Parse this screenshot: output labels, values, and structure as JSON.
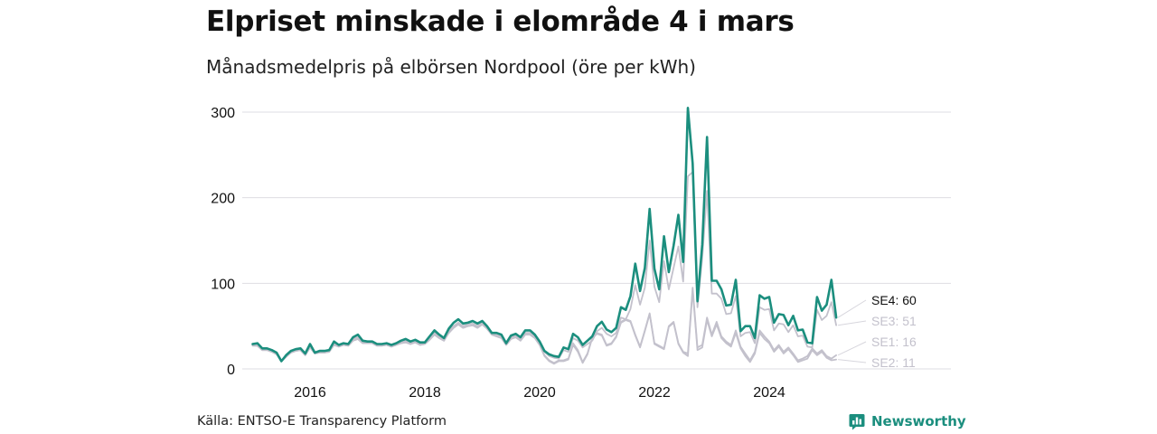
{
  "title": "Elpriset minskade i elområde 4 i mars",
  "subtitle": "Månadsmedelpris på elbörsen Nordpool (öre per kWh)",
  "source": "Källa: ENTSO-E Transparency Platform",
  "brand": {
    "name": "Newsworthy",
    "icon": "bar-chart-speech-bubble-icon",
    "color": "#1b8e7e"
  },
  "chart_data": {
    "type": "line",
    "x_start": "2015-01",
    "x_end": "2025-03",
    "ylim": [
      0,
      310
    ],
    "y_ticks": [
      0,
      100,
      200,
      300
    ],
    "x_ticks": [
      2016,
      2018,
      2020,
      2022,
      2024
    ],
    "grid": true,
    "series": [
      {
        "name": "SE4",
        "end_label": "SE4: 60",
        "color": "#1b8e7e",
        "label_color": "#111111",
        "emphasis": true,
        "values": [
          29,
          30,
          24,
          24,
          22,
          19,
          9,
          16,
          21,
          23,
          24,
          18,
          29,
          19,
          21,
          21,
          22,
          32,
          28,
          30,
          29,
          37,
          40,
          33,
          32,
          32,
          29,
          29,
          30,
          28,
          30,
          33,
          35,
          32,
          34,
          31,
          31,
          38,
          45,
          40,
          36,
          47,
          54,
          58,
          53,
          54,
          56,
          53,
          56,
          50,
          42,
          42,
          40,
          30,
          39,
          41,
          37,
          45,
          45,
          40,
          32,
          21,
          17,
          15,
          14,
          25,
          23,
          41,
          37,
          28,
          33,
          38,
          50,
          55,
          46,
          43,
          48,
          72,
          69,
          85,
          123,
          91,
          118,
          187,
          117,
          93,
          155,
          113,
          144,
          180,
          125,
          305,
          240,
          79,
          145,
          271,
          103,
          103,
          93,
          74,
          75,
          104,
          44,
          50,
          50,
          36,
          86,
          82,
          84,
          54,
          64,
          63,
          51,
          62,
          45,
          46,
          31,
          30,
          84,
          68,
          75,
          104,
          60
        ]
      },
      {
        "name": "SE3",
        "end_label": "SE3: 51",
        "color": "#c3c1cc",
        "label_color": "#c3c1cc",
        "emphasis": false,
        "values": [
          28,
          29,
          23,
          23,
          21,
          18,
          9,
          15,
          20,
          22,
          23,
          17,
          27,
          19,
          20,
          20,
          21,
          30,
          27,
          29,
          28,
          35,
          37,
          31,
          31,
          31,
          28,
          28,
          29,
          27,
          29,
          31,
          33,
          30,
          32,
          29,
          30,
          36,
          42,
          38,
          34,
          44,
          50,
          54,
          50,
          52,
          53,
          50,
          54,
          48,
          41,
          40,
          38,
          29,
          37,
          39,
          35,
          42,
          42,
          38,
          30,
          20,
          15,
          13,
          12,
          22,
          20,
          36,
          33,
          25,
          29,
          33,
          44,
          48,
          41,
          38,
          42,
          60,
          58,
          70,
          98,
          75,
          95,
          150,
          96,
          78,
          126,
          93,
          118,
          143,
          102,
          225,
          230,
          72,
          130,
          208,
          88,
          88,
          82,
          64,
          65,
          85,
          38,
          42,
          43,
          30,
          72,
          69,
          70,
          45,
          53,
          52,
          43,
          51,
          38,
          39,
          26,
          25,
          69,
          57,
          62,
          78,
          51
        ]
      },
      {
        "name": "SE1",
        "end_label": "SE1: 16",
        "color": "#c3c1cc",
        "label_color": "#c3c1cc",
        "emphasis": false,
        "values": [
          27,
          27,
          22,
          22,
          20,
          17,
          9,
          14,
          19,
          21,
          22,
          16,
          25,
          18,
          19,
          19,
          20,
          28,
          26,
          28,
          27,
          33,
          35,
          30,
          30,
          30,
          27,
          27,
          28,
          26,
          28,
          30,
          31,
          29,
          31,
          28,
          29,
          34,
          40,
          36,
          33,
          42,
          48,
          52,
          48,
          50,
          51,
          48,
          52,
          47,
          40,
          38,
          36,
          28,
          35,
          37,
          33,
          40,
          40,
          36,
          28,
          16,
          10,
          7,
          10,
          10,
          12,
          30,
          22,
          8,
          18,
          37,
          42,
          40,
          28,
          30,
          38,
          55,
          58,
          56,
          40,
          26,
          45,
          65,
          30,
          27,
          24,
          50,
          55,
          30,
          20,
          18,
          95,
          25,
          28,
          60,
          40,
          55,
          38,
          32,
          28,
          45,
          26,
          18,
          10,
          20,
          45,
          38,
          32,
          22,
          28,
          20,
          25,
          18,
          10,
          12,
          15,
          24,
          18,
          22,
          15,
          12,
          16
        ]
      },
      {
        "name": "SE2",
        "end_label": "SE2: 11",
        "color": "#c3c1cc",
        "label_color": "#c3c1cc",
        "emphasis": false,
        "values": [
          27,
          27,
          22,
          22,
          20,
          17,
          9,
          14,
          19,
          21,
          22,
          16,
          25,
          18,
          19,
          19,
          20,
          28,
          26,
          28,
          27,
          33,
          35,
          30,
          30,
          30,
          27,
          27,
          28,
          26,
          28,
          30,
          31,
          29,
          31,
          28,
          29,
          34,
          40,
          36,
          33,
          42,
          48,
          52,
          48,
          50,
          51,
          48,
          52,
          47,
          40,
          38,
          36,
          28,
          35,
          37,
          33,
          40,
          40,
          36,
          28,
          15,
          9,
          6,
          9,
          9,
          11,
          28,
          20,
          7,
          17,
          36,
          41,
          39,
          27,
          29,
          37,
          54,
          57,
          55,
          39,
          25,
          44,
          64,
          29,
          26,
          23,
          49,
          54,
          29,
          19,
          15,
          92,
          22,
          25,
          57,
          38,
          52,
          36,
          30,
          26,
          42,
          24,
          15,
          8,
          18,
          42,
          35,
          30,
          20,
          26,
          18,
          23,
          16,
          8,
          10,
          12,
          22,
          16,
          20,
          13,
          10,
          11
        ]
      }
    ]
  }
}
